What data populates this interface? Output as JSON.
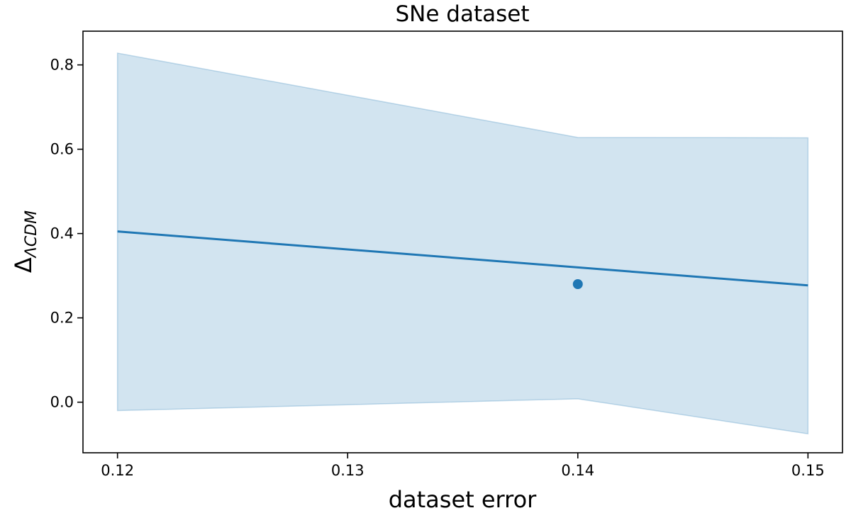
{
  "chart_data": {
    "type": "line",
    "title": "SNe dataset",
    "xlabel": "dataset error",
    "ylabel": {
      "main": "Δ",
      "subscript": "ΛCDM"
    },
    "xlim": [
      0.1185,
      0.1515
    ],
    "ylim": [
      -0.12,
      0.88
    ],
    "xticks": [
      0.12,
      0.13,
      0.14,
      0.15
    ],
    "xtick_labels": [
      "0.12",
      "0.13",
      "0.14",
      "0.15"
    ],
    "yticks": [
      0.0,
      0.2,
      0.4,
      0.6,
      0.8
    ],
    "ytick_labels": [
      "0.0",
      "0.2",
      "0.4",
      "0.6",
      "0.8"
    ],
    "grid": false,
    "series": [
      {
        "kind": "line",
        "x": [
          0.12,
          0.15
        ],
        "y": [
          0.405,
          0.277
        ],
        "color": "#1f77b4"
      },
      {
        "kind": "band",
        "x": [
          0.12,
          0.14,
          0.15
        ],
        "lower": [
          -0.02,
          0.008,
          -0.075
        ],
        "upper": [
          0.828,
          0.628,
          0.627
        ],
        "color": "#1f77b4",
        "opacity": 0.2
      },
      {
        "kind": "point",
        "x": [
          0.14
        ],
        "y": [
          0.28
        ],
        "color": "#1f77b4"
      }
    ]
  }
}
